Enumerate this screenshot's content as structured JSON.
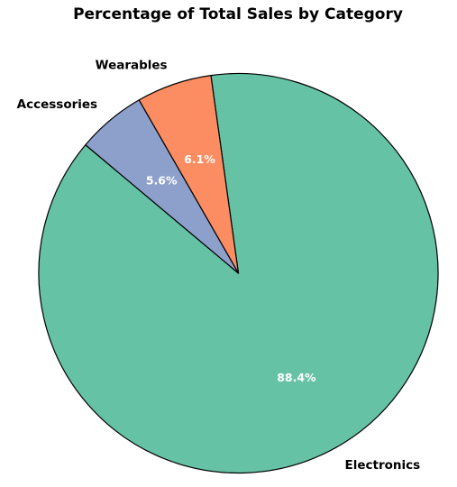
{
  "chart_data": {
    "type": "pie",
    "title": "Percentage of Total Sales by Category",
    "categories": [
      "Electronics",
      "Wearables",
      "Accessories"
    ],
    "values": [
      88.4,
      6.1,
      5.6
    ],
    "percent_labels": [
      "88.4%",
      "6.1%",
      "5.6%"
    ],
    "colors": [
      "#66c2a5",
      "#fc8d62",
      "#8da0cb"
    ],
    "edge_color": "#000000",
    "start_angle_deg": 140,
    "direction": "clockwise"
  }
}
